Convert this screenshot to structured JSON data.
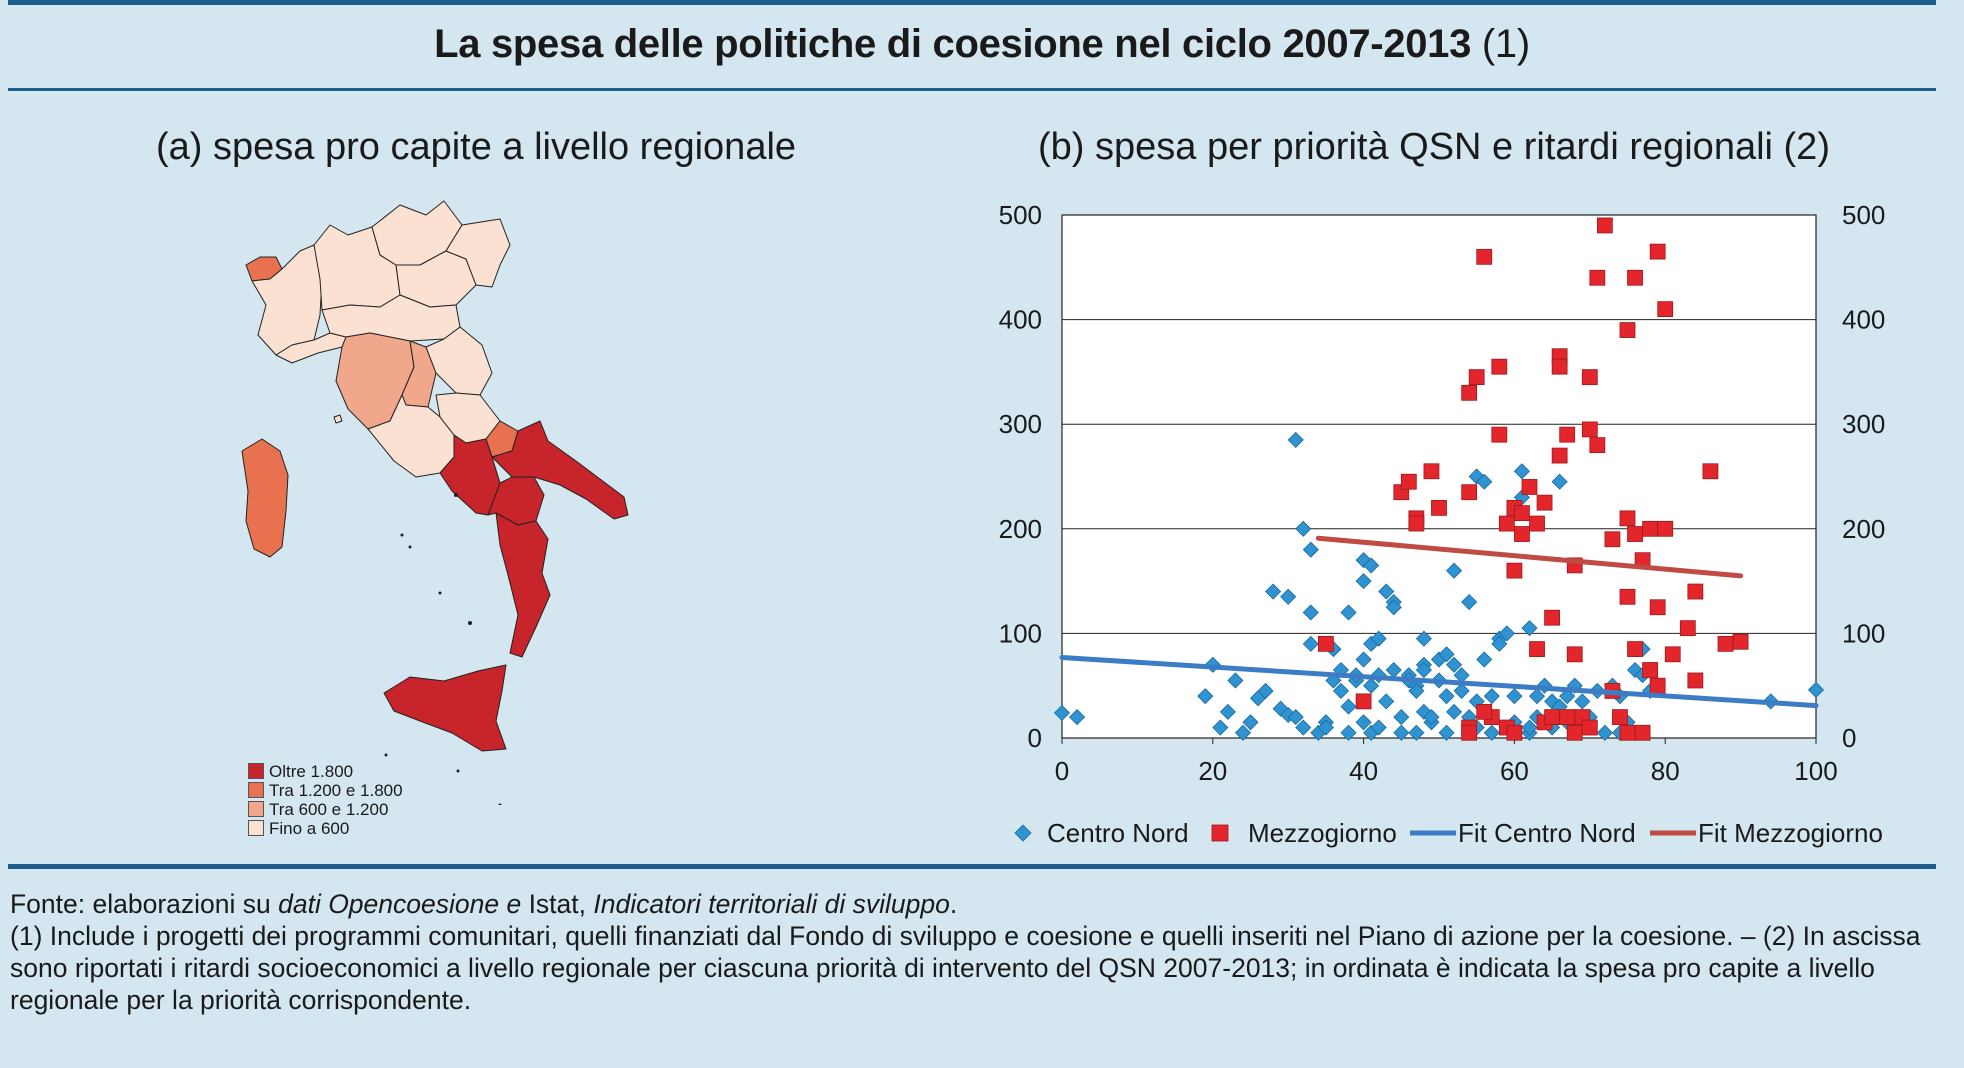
{
  "title": {
    "main": "La spesa delle politiche di coesione nel ciclo 2007-2013",
    "note": "(1)"
  },
  "panel_a": {
    "title": "(a) spesa pro capite a livello regionale",
    "legend": [
      {
        "label": "Oltre 1.800",
        "color": "#c8242b"
      },
      {
        "label": "Tra 1.200 e 1.800",
        "color": "#e8714f"
      },
      {
        "label": "Tra 600 e 1.200",
        "color": "#f0a78c"
      },
      {
        "label": "Fino a 600",
        "color": "#fbe1d2"
      }
    ]
  },
  "panel_b": {
    "title": "(b) spesa per priorità QSN e ritardi regionali (2)"
  },
  "chart_data": {
    "type": "scatter",
    "xlim": [
      0,
      100
    ],
    "ylim": [
      0,
      500
    ],
    "x_ticks": [
      "0",
      "20",
      "40",
      "60",
      "80",
      "100"
    ],
    "y_ticks": [
      "0",
      "100",
      "200",
      "300",
      "400",
      "500"
    ],
    "y2_ticks": [
      "0",
      "100",
      "200",
      "300",
      "400",
      "500"
    ],
    "grid": "horizontal",
    "legend_position": "bottom",
    "series": [
      {
        "name": "Centro Nord",
        "kind": "points",
        "marker": "diamond",
        "color": "#2f93d1",
        "points": [
          [
            0,
            24
          ],
          [
            2,
            20
          ],
          [
            19,
            40
          ],
          [
            20,
            70
          ],
          [
            21,
            10
          ],
          [
            22,
            25
          ],
          [
            23,
            55
          ],
          [
            24,
            5
          ],
          [
            25,
            15
          ],
          [
            26,
            38
          ],
          [
            27,
            45
          ],
          [
            28,
            140
          ],
          [
            29,
            28
          ],
          [
            30,
            22
          ],
          [
            30,
            135
          ],
          [
            31,
            285
          ],
          [
            31,
            20
          ],
          [
            32,
            10
          ],
          [
            32,
            200
          ],
          [
            33,
            120
          ],
          [
            33,
            180
          ],
          [
            33,
            90
          ],
          [
            34,
            5
          ],
          [
            35,
            15
          ],
          [
            35,
            10
          ],
          [
            36,
            85
          ],
          [
            36,
            55
          ],
          [
            37,
            45
          ],
          [
            37,
            65
          ],
          [
            38,
            30
          ],
          [
            38,
            120
          ],
          [
            38,
            5
          ],
          [
            39,
            55
          ],
          [
            39,
            60
          ],
          [
            40,
            15
          ],
          [
            40,
            150
          ],
          [
            40,
            170
          ],
          [
            40,
            75
          ],
          [
            41,
            90
          ],
          [
            41,
            165
          ],
          [
            41,
            5
          ],
          [
            41,
            50
          ],
          [
            42,
            95
          ],
          [
            42,
            60
          ],
          [
            42,
            10
          ],
          [
            43,
            140
          ],
          [
            43,
            35
          ],
          [
            44,
            130
          ],
          [
            44,
            125
          ],
          [
            44,
            65
          ],
          [
            45,
            20
          ],
          [
            45,
            5
          ],
          [
            46,
            60
          ],
          [
            46,
            55
          ],
          [
            47,
            50
          ],
          [
            47,
            45
          ],
          [
            47,
            5
          ],
          [
            48,
            95
          ],
          [
            48,
            25
          ],
          [
            48,
            70
          ],
          [
            48,
            65
          ],
          [
            49,
            15
          ],
          [
            49,
            20
          ],
          [
            50,
            55
          ],
          [
            50,
            75
          ],
          [
            51,
            80
          ],
          [
            51,
            40
          ],
          [
            51,
            5
          ],
          [
            52,
            25
          ],
          [
            52,
            70
          ],
          [
            52,
            160
          ],
          [
            53,
            60
          ],
          [
            53,
            45
          ],
          [
            54,
            130
          ],
          [
            54,
            20
          ],
          [
            55,
            250
          ],
          [
            55,
            35
          ],
          [
            55,
            10
          ],
          [
            56,
            245
          ],
          [
            56,
            75
          ],
          [
            57,
            5
          ],
          [
            57,
            40
          ],
          [
            58,
            95
          ],
          [
            58,
            90
          ],
          [
            59,
            100
          ],
          [
            59,
            10
          ],
          [
            60,
            15
          ],
          [
            60,
            40
          ],
          [
            61,
            230
          ],
          [
            61,
            255
          ],
          [
            62,
            105
          ],
          [
            62,
            5
          ],
          [
            62,
            10
          ],
          [
            63,
            40
          ],
          [
            63,
            20
          ],
          [
            64,
            50
          ],
          [
            65,
            35
          ],
          [
            65,
            10
          ],
          [
            66,
            30
          ],
          [
            66,
            245
          ],
          [
            67,
            15
          ],
          [
            67,
            40
          ],
          [
            68,
            5
          ],
          [
            68,
            50
          ],
          [
            69,
            35
          ],
          [
            70,
            10
          ],
          [
            70,
            20
          ],
          [
            71,
            45
          ],
          [
            72,
            5
          ],
          [
            73,
            50
          ],
          [
            74,
            40
          ],
          [
            74,
            5
          ],
          [
            75,
            15
          ],
          [
            76,
            65
          ],
          [
            77,
            85
          ],
          [
            77,
            60
          ],
          [
            78,
            45
          ],
          [
            94,
            35
          ],
          [
            100,
            46
          ]
        ]
      },
      {
        "name": "Mezzogiorno",
        "kind": "points",
        "marker": "square",
        "color": "#e3262b",
        "points": [
          [
            35,
            90
          ],
          [
            40,
            35
          ],
          [
            45,
            235
          ],
          [
            46,
            245
          ],
          [
            47,
            210
          ],
          [
            47,
            205
          ],
          [
            49,
            255
          ],
          [
            50,
            220
          ],
          [
            54,
            330
          ],
          [
            54,
            235
          ],
          [
            54,
            10
          ],
          [
            55,
            345
          ],
          [
            56,
            460
          ],
          [
            57,
            20
          ],
          [
            58,
            355
          ],
          [
            58,
            290
          ],
          [
            59,
            205
          ],
          [
            59,
            10
          ],
          [
            60,
            220
          ],
          [
            60,
            160
          ],
          [
            61,
            215
          ],
          [
            61,
            195
          ],
          [
            62,
            240
          ],
          [
            63,
            205
          ],
          [
            63,
            85
          ],
          [
            64,
            225
          ],
          [
            64,
            15
          ],
          [
            65,
            115
          ],
          [
            66,
            365
          ],
          [
            66,
            355
          ],
          [
            66,
            270
          ],
          [
            67,
            290
          ],
          [
            68,
            165
          ],
          [
            68,
            80
          ],
          [
            68,
            5
          ],
          [
            69,
            20
          ],
          [
            70,
            345
          ],
          [
            70,
            295
          ],
          [
            71,
            280
          ],
          [
            71,
            440
          ],
          [
            72,
            490
          ],
          [
            73,
            190
          ],
          [
            74,
            20
          ],
          [
            75,
            135
          ],
          [
            75,
            390
          ],
          [
            75,
            210
          ],
          [
            76,
            440
          ],
          [
            76,
            195
          ],
          [
            76,
            85
          ],
          [
            77,
            170
          ],
          [
            77,
            5
          ],
          [
            78,
            200
          ],
          [
            78,
            65
          ],
          [
            79,
            125
          ],
          [
            79,
            465
          ],
          [
            79,
            50
          ],
          [
            80,
            410
          ],
          [
            80,
            200
          ],
          [
            81,
            80
          ],
          [
            83,
            105
          ],
          [
            84,
            55
          ],
          [
            84,
            140
          ],
          [
            86,
            255
          ],
          [
            88,
            90
          ],
          [
            90,
            92
          ],
          [
            54,
            5
          ],
          [
            56,
            25
          ],
          [
            60,
            5
          ],
          [
            65,
            20
          ],
          [
            67,
            20
          ],
          [
            70,
            10
          ],
          [
            73,
            45
          ],
          [
            75,
            5
          ]
        ]
      },
      {
        "name": "Fit Centro Nord",
        "kind": "line",
        "color": "#3b7cc4",
        "points": [
          [
            0,
            77
          ],
          [
            100,
            31
          ]
        ]
      },
      {
        "name": "Fit Mezzogiorno",
        "kind": "line",
        "color": "#c04a44",
        "points": [
          [
            34,
            191
          ],
          [
            90,
            155
          ]
        ]
      }
    ]
  },
  "footer": {
    "source_prefix": "Fonte: elaborazioni su ",
    "source_italic1": "dati Opencoesione e",
    "source_mid": " Istat, ",
    "source_italic2": "Indicatori territoriali di sviluppo",
    "source_end": ".",
    "note1": "(1) Include i progetti dei programmi comunitari, quelli finanziati dal Fondo di sviluppo e coesione e quelli inseriti nel Piano di azione per la coesione. – (2) In ascissa sono riportati i ritardi socioeconomici a livello regionale per ciascuna priorità di intervento del QSN 2007-2013; in ordinata è indicata la spesa pro capite a livello regionale per la priorità corrispondente."
  }
}
